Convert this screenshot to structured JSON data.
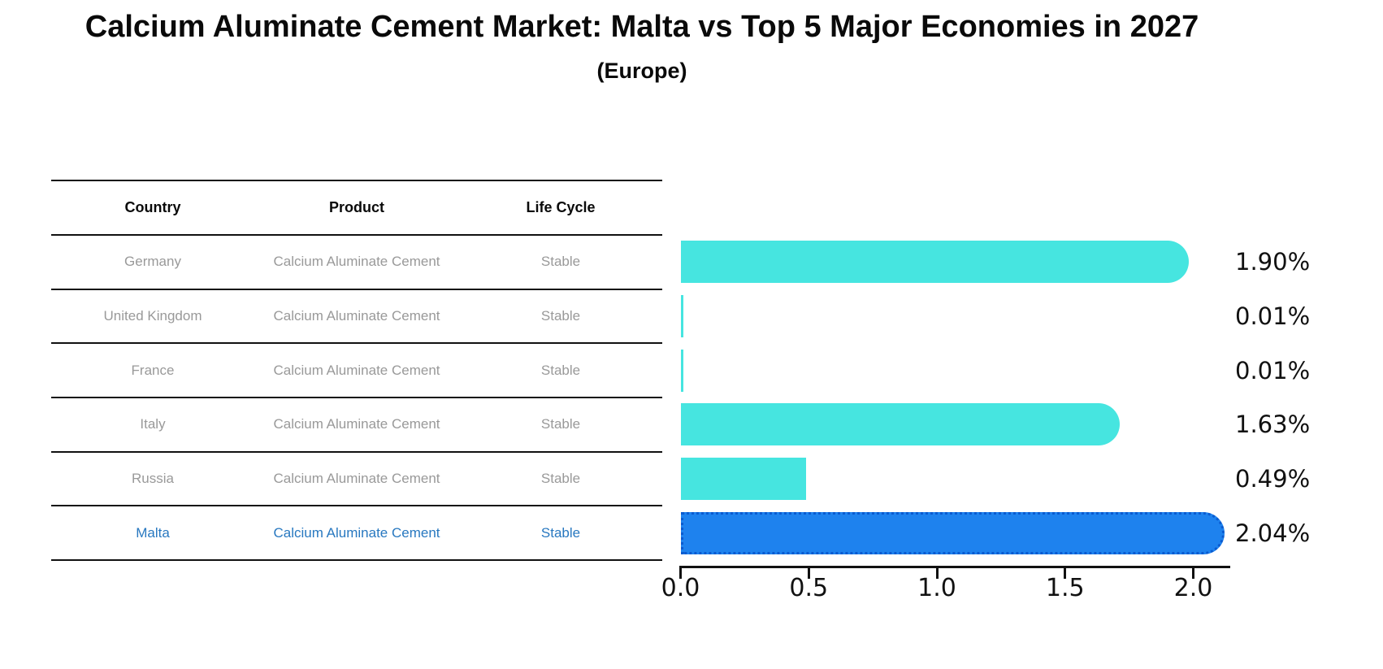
{
  "title": "Calcium Aluminate Cement Market: Malta vs Top 5 Major Economies in 2027",
  "subtitle": "(Europe)",
  "table": {
    "headers": [
      "Country",
      "Product",
      "Life Cycle"
    ],
    "rows": [
      {
        "country": "Germany",
        "product": "Calcium Aluminate Cement",
        "life_cycle": "Stable",
        "value": 1.9,
        "value_label": "1.90%",
        "highlighted": false
      },
      {
        "country": "United Kingdom",
        "product": "Calcium Aluminate Cement",
        "life_cycle": "Stable",
        "value": 0.01,
        "value_label": "0.01%",
        "highlighted": false
      },
      {
        "country": "France",
        "product": "Calcium Aluminate Cement",
        "life_cycle": "Stable",
        "value": 0.01,
        "value_label": "0.01%",
        "highlighted": false
      },
      {
        "country": "Italy",
        "product": "Calcium Aluminate Cement",
        "life_cycle": "Stable",
        "value": 1.63,
        "value_label": "1.63%",
        "highlighted": false
      },
      {
        "country": "Russia",
        "product": "Calcium Aluminate Cement",
        "life_cycle": "Stable",
        "value": 0.49,
        "value_label": "0.49%",
        "highlighted": false
      },
      {
        "country": "Malta",
        "product": "Calcium Aluminate Cement",
        "life_cycle": "Stable",
        "value": 2.04,
        "value_label": "2.04%",
        "highlighted": true
      }
    ]
  },
  "chart_data": {
    "type": "bar",
    "orientation": "horizontal",
    "title": "Calcium Aluminate Cement Market: Malta vs Top 5 Major Economies in 2027",
    "subtitle": "(Europe)",
    "categories": [
      "Germany",
      "United Kingdom",
      "France",
      "Italy",
      "Russia",
      "Malta"
    ],
    "values": [
      1.9,
      0.01,
      0.01,
      1.63,
      0.49,
      2.04
    ],
    "value_labels": [
      "1.90%",
      "0.01%",
      "0.01%",
      "1.63%",
      "0.49%",
      "2.04%"
    ],
    "x_tick_labels": [
      "0.0",
      "0.5",
      "1.0",
      "1.5",
      "2.0"
    ],
    "x_tick_values": [
      0.0,
      0.5,
      1.0,
      1.5,
      2.0
    ],
    "xlim": [
      0,
      2.15
    ],
    "grid": false,
    "legend": false,
    "highlighted_category": "Malta"
  },
  "colors": {
    "bar_default": "#46E5E0",
    "bar_highlight": "#1E82EE",
    "bar_highlight_border": "#0A5BD0",
    "row_text": "#999999",
    "row_text_highlight": "#2878C0",
    "header_text": "#0a0a0a",
    "line": "#111111"
  }
}
